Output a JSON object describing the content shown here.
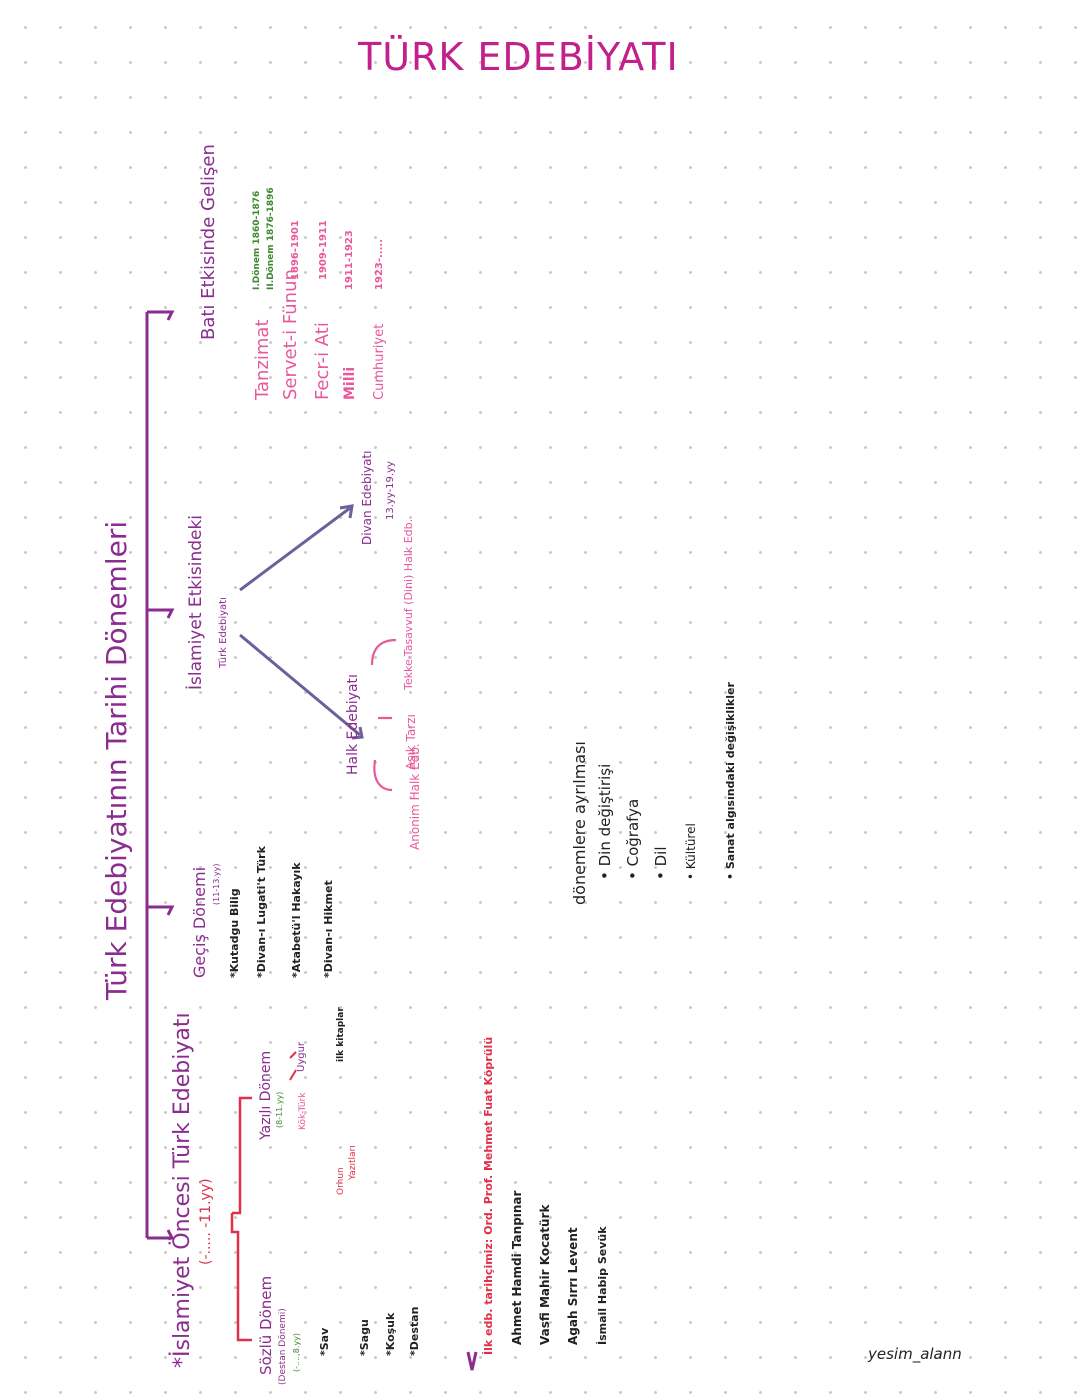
{
  "title": "TÜRK EDEBİYATI",
  "main_heading": "Türk Edebiyatının Tarihi Dönemleri",
  "pre_islamic": {
    "heading": "*İslamiyet Öncesi Türk Edebiyatı",
    "range": "(-..... -11.yy)",
    "oral": {
      "title": "Sözlü Dönem",
      "subtitle": "(Destan Dönemi)",
      "range": "(-....,8.yy)",
      "items": [
        "*Sav",
        "*Sagu",
        "*Koşuk",
        "*Destan"
      ]
    },
    "written": {
      "title": "Yazılı Dönem",
      "range": "(8-11.yy)",
      "branch_left": "Kök-Türk",
      "branch_right": "Uygur",
      "left_note_1": "Orhun",
      "left_note_2": "Yazıtları",
      "right_note": "ilk kitaplar"
    }
  },
  "transition": {
    "title": "Geçiş Dönemi",
    "range": "(11-13.yy)",
    "items": [
      "*Kutadgu Bilig",
      "*Divan-ı Lugati't Türk",
      "*Atabetü'l Hakayık",
      "*Divan-ı Hikmet"
    ]
  },
  "islamic": {
    "heading": "İslamiyet Etkisindeki",
    "subheading": "Türk Edebiyatı",
    "folk": {
      "title": "Halk Edebiyatı",
      "branches": [
        "Anonim Halk Edb.",
        "Aşık Tarzı",
        "Tekke-Tasavvuf (Dini) Halk Edb."
      ]
    },
    "divan": {
      "title": "Divan Edebiyatı",
      "range": "13.yy-19.yy"
    }
  },
  "western": {
    "heading": "Batı Etkisinde Gelişen",
    "periods": [
      {
        "name": "Tanzimat",
        "range": "I.Dönem 1860-1876",
        "range2": "II.Dönem 1876-1896"
      },
      {
        "name": "Servet-i Fünun",
        "range": "1896-1901"
      },
      {
        "name": "Fecr-i Ati",
        "range": "1909-1911"
      },
      {
        "name": "Milli",
        "range": "1911-1923"
      },
      {
        "name": "Cumhuriyet",
        "range": "1923-....."
      }
    ]
  },
  "historians": {
    "heading": "İlk edb. tarihçimiz: Ord. Prof. Mehmet Fuat Köprülü",
    "names": [
      "Ahmet Hamdi Tanpınar",
      "Vasfi Mahir Kocatürk",
      "Agah Sırrı Levent",
      "İsmail Habip Sevük"
    ]
  },
  "criteria": {
    "heading": "dönemlere ayrılması",
    "items": [
      "Din değiştirişi",
      "Coğrafya",
      "Dil",
      "Kültürel",
      "Sanat algısındaki değişiklikler"
    ]
  },
  "signature": "yesim_alann",
  "colors": {
    "title": "#c2208a",
    "tree": "#8a2d8f",
    "accent_red": "#e0304a",
    "accent_pink": "#e8589a",
    "accent_green": "#3f8a2f",
    "arrow_gray": "#6d5f9a"
  }
}
